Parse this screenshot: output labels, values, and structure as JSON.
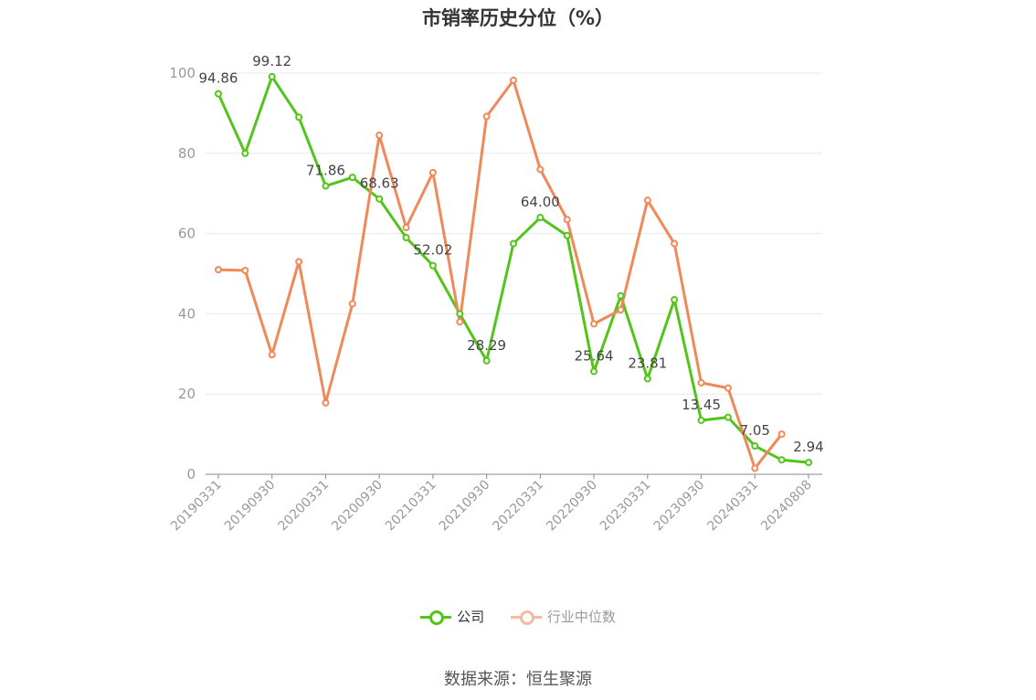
{
  "title": "市销率历史分位（%）",
  "source": "数据来源：恒生聚源",
  "colors": {
    "company": "#52c41a",
    "industry": "#f0895a",
    "industry_legend": "#f7b9a0",
    "grid": "#e6e8f0",
    "axis": "#999999",
    "label": "#444444"
  },
  "legend": {
    "company": "公司",
    "industry": "行业中位数"
  },
  "chart_data": {
    "type": "line",
    "title": "市销率历史分位（%）",
    "xlabel": "",
    "ylabel": "",
    "ylim": [
      0,
      100
    ],
    "yticks": [
      "0",
      "20",
      "40",
      "60",
      "80",
      "100"
    ],
    "grid": true,
    "legend_position": "bottom",
    "x": [
      "20190331",
      "20190630",
      "20190930",
      "20191231",
      "20200331",
      "20200630",
      "20200930",
      "20201231",
      "20210331",
      "20210630",
      "20210930",
      "20211231",
      "20220331",
      "20220630",
      "20220930",
      "20221231",
      "20230331",
      "20230630",
      "20230930",
      "20231231",
      "20240331",
      "20240630",
      "20240808"
    ],
    "xtick_labels": [
      "20190331",
      "20190930",
      "20200331",
      "20200930",
      "20210331",
      "20210930",
      "20220331",
      "20220930",
      "20230331",
      "20230930",
      "20240331",
      "20240808"
    ],
    "series": [
      {
        "name": "公司",
        "values": [
          94.86,
          80.0,
          99.12,
          89.0,
          71.86,
          74.0,
          68.63,
          59.0,
          52.02,
          40.0,
          28.29,
          57.5,
          64.0,
          59.5,
          25.64,
          44.5,
          23.81,
          43.5,
          13.45,
          14.2,
          7.05,
          3.6,
          2.94
        ]
      },
      {
        "name": "行业中位数",
        "values": [
          51.0,
          50.8,
          29.8,
          53.0,
          17.8,
          42.5,
          84.5,
          61.5,
          75.2,
          38.0,
          89.2,
          98.2,
          76.0,
          63.5,
          37.5,
          41.0,
          68.3,
          57.5,
          22.8,
          21.5,
          1.5,
          10.0,
          null
        ]
      }
    ],
    "data_labels": {
      "公司": [
        {
          "index": 0,
          "text": "94.86"
        },
        {
          "index": 2,
          "text": "99.12"
        },
        {
          "index": 4,
          "text": "71.86"
        },
        {
          "index": 6,
          "text": "68.63"
        },
        {
          "index": 8,
          "text": "52.02"
        },
        {
          "index": 10,
          "text": "28.29"
        },
        {
          "index": 12,
          "text": "64.00"
        },
        {
          "index": 14,
          "text": "25.64"
        },
        {
          "index": 16,
          "text": "23.81"
        },
        {
          "index": 18,
          "text": "13.45"
        },
        {
          "index": 20,
          "text": "7.05"
        },
        {
          "index": 22,
          "text": "2.94"
        }
      ]
    }
  }
}
